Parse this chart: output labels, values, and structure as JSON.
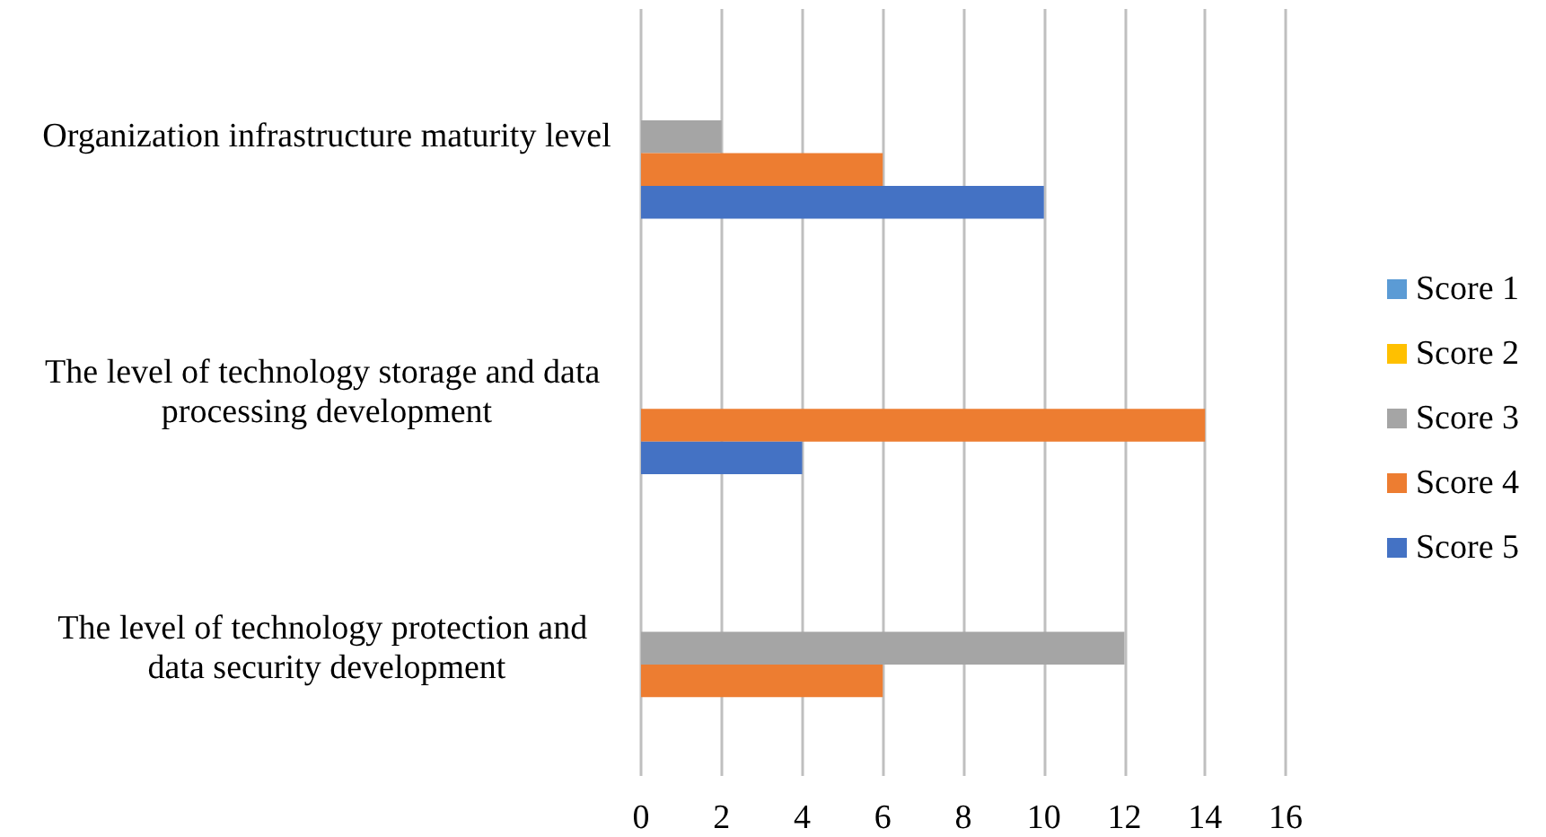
{
  "chart_data": {
    "type": "bar",
    "orientation": "horizontal",
    "categories": [
      "Organization infrastructure maturity level",
      "The level of technology storage and data processing development",
      "The level of technology protection and data security development"
    ],
    "series": [
      {
        "name": "Score 1",
        "color": "#5b9bd5",
        "values": [
          0,
          0,
          0
        ]
      },
      {
        "name": "Score 2",
        "color": "#ffc000",
        "values": [
          0,
          0,
          0
        ]
      },
      {
        "name": "Score 3",
        "color": "#a5a5a5",
        "values": [
          2,
          0,
          12
        ]
      },
      {
        "name": "Score 4",
        "color": "#ed7d31",
        "values": [
          6,
          14,
          6
        ]
      },
      {
        "name": "Score 5",
        "color": "#4472c4",
        "values": [
          10,
          4,
          0
        ]
      }
    ],
    "xlim": [
      0,
      16
    ],
    "xticks": [
      0,
      2,
      4,
      6,
      8,
      10,
      12,
      14,
      16
    ],
    "grid": "x",
    "legend": "right"
  }
}
